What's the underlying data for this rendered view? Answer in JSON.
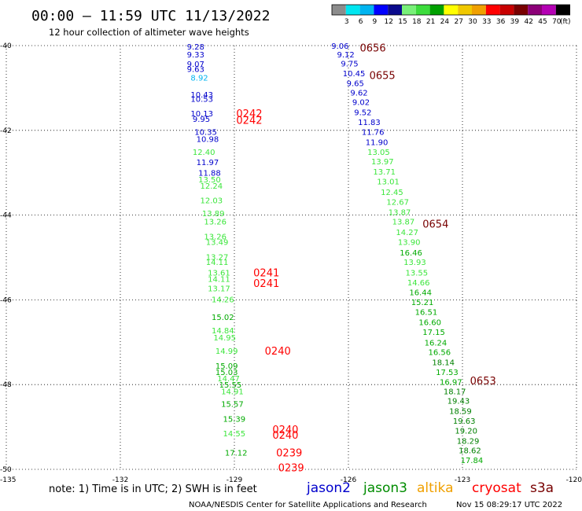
{
  "header": {
    "title": "00:00 – 11:59 UTC 11/13/2022",
    "subtitle": "12 hour collection of altimeter wave heights"
  },
  "colorbar": {
    "unit": "(ft)",
    "bins": [
      {
        "label": "",
        "color": "#8c8c8c"
      },
      {
        "label": "3",
        "color": "#00e6f0"
      },
      {
        "label": "6",
        "color": "#00b4f0"
      },
      {
        "label": "9",
        "color": "#0000ff"
      },
      {
        "label": "12",
        "color": "#0a0a8c"
      },
      {
        "label": "15",
        "color": "#78f078"
      },
      {
        "label": "18",
        "color": "#3cdc3c"
      },
      {
        "label": "21",
        "color": "#00a000"
      },
      {
        "label": "24",
        "color": "#ffff00"
      },
      {
        "label": "27",
        "color": "#f0c800"
      },
      {
        "label": "30",
        "color": "#f0a000"
      },
      {
        "label": "33",
        "color": "#ff0000"
      },
      {
        "label": "36",
        "color": "#c80000"
      },
      {
        "label": "39",
        "color": "#780000"
      },
      {
        "label": "42",
        "color": "#8c0078"
      },
      {
        "label": "45",
        "color": "#b400b4"
      },
      {
        "label": "70",
        "color": "#000000"
      }
    ]
  },
  "footer": {
    "note": "note: 1) Time is in UTC; 2) SWH is in feet",
    "credit": "NOAA/NESDIS Center for Satellite Applications and Research",
    "timestamp": "Nov 15 08:29:17 UTC 2022"
  },
  "legend": [
    {
      "name": "jason2",
      "color": "#0000cc"
    },
    {
      "name": "jason3",
      "color": "#008c00"
    },
    {
      "name": "altika",
      "color": "#f0a000"
    },
    {
      "name": "cryosat",
      "color": "#ff0000"
    },
    {
      "name": "s3a",
      "color": "#780000"
    }
  ],
  "chart_data": {
    "type": "scatter",
    "xlim": [
      -135,
      -120
    ],
    "ylim": [
      -50,
      -40
    ],
    "x_ticks": [
      -135,
      -132,
      -129,
      -126,
      -123,
      -120
    ],
    "y_ticks": [
      -40,
      -42,
      -44,
      -46,
      -48,
      -50
    ],
    "y_tick_labels": [
      "-40",
      "-42",
      "-44",
      "-46",
      "-48",
      "-50"
    ],
    "grid": true,
    "value_colors": [
      {
        "max": 9,
        "color": "#00b4f0"
      },
      {
        "max": 12,
        "color": "#0000cc"
      },
      {
        "max": 15,
        "color": "#3ce63c"
      },
      {
        "max": 18,
        "color": "#00aa00"
      },
      {
        "max": 21,
        "color": "#008000"
      }
    ],
    "track_west": {
      "lon": [
        -130.25,
        -130.25,
        -130.25,
        -130.25,
        -130.15,
        -130.15,
        -130.15,
        -130.15,
        -130.1,
        -130.05,
        -130.0,
        -130.1,
        -130.0,
        -129.95,
        -129.95,
        -129.9,
        -129.9,
        -129.85,
        -129.8,
        -129.8,
        -129.75,
        -129.75,
        -129.75,
        -129.7,
        -129.7,
        -129.7,
        -129.6,
        -129.6,
        -129.6,
        -129.55,
        -129.5,
        -129.5,
        -129.5,
        -129.45,
        -129.4,
        -129.35,
        -129.35,
        -129.3,
        -129.3,
        -129.25
      ],
      "lat": [
        -40.02,
        -40.2,
        -40.43,
        -40.55,
        -40.75,
        -41.15,
        -41.25,
        -41.6,
        -41.73,
        -42.03,
        -42.2,
        -42.5,
        -42.75,
        -43.0,
        -43.15,
        -43.3,
        -43.65,
        -43.95,
        -44.15,
        -44.5,
        -44.63,
        -44.98,
        -45.1,
        -45.35,
        -45.5,
        -45.72,
        -45.98,
        -46.4,
        -46.72,
        -46.88,
        -47.2,
        -47.55,
        -47.7,
        -47.85,
        -48.0,
        -48.15,
        -48.45,
        -48.8,
        -49.15,
        -49.6
      ],
      "values": [
        "9.28",
        "9.33",
        "9.07",
        "9.63",
        "8.92",
        "10.43",
        "10.53",
        "10.13",
        "9.95",
        "10.35",
        "10.98",
        "12.40",
        "11.97",
        "11.88",
        "13.50",
        "12.24",
        "12.03",
        "13.89",
        "13.26",
        "13.26",
        "13.49",
        "13.27",
        "14.11",
        "13.61",
        "14.11",
        "13.17",
        "14.26",
        "15.02",
        "14.84",
        "14.95",
        "14.99",
        "15.09",
        "15.03",
        "14.47",
        "15.55",
        "14.91",
        "15.57",
        "15.39",
        "14.55",
        "17.12"
      ]
    },
    "track_east": {
      "lon": [
        -126.45,
        -126.3,
        -126.2,
        -126.15,
        -126.05,
        -125.95,
        -125.9,
        -125.85,
        -125.75,
        -125.65,
        -125.55,
        -125.5,
        -125.4,
        -125.35,
        -125.25,
        -125.15,
        -125.0,
        -124.95,
        -124.85,
        -124.75,
        -124.7,
        -124.65,
        -124.55,
        -124.5,
        -124.45,
        -124.4,
        -124.35,
        -124.25,
        -124.15,
        -124.05,
        -124.0,
        -123.9,
        -123.8,
        -123.7,
        -123.6,
        -123.5,
        -123.4,
        -123.35,
        -123.25,
        -123.2,
        -123.15,
        -123.1,
        -123.05
      ],
      "lat": [
        -40.0,
        -40.2,
        -40.42,
        -40.65,
        -40.88,
        -41.1,
        -41.33,
        -41.57,
        -41.8,
        -42.03,
        -42.27,
        -42.5,
        -42.73,
        -42.97,
        -43.2,
        -43.45,
        -43.68,
        -43.92,
        -44.15,
        -44.4,
        -44.63,
        -44.88,
        -45.1,
        -45.35,
        -45.58,
        -45.82,
        -46.05,
        -46.28,
        -46.52,
        -46.75,
        -47.0,
        -47.23,
        -47.47,
        -47.7,
        -47.93,
        -48.15,
        -48.38,
        -48.62,
        -48.85,
        -49.08,
        -49.32,
        -49.55,
        -49.78
      ],
      "values": [
        "9.06",
        "9.12",
        "9.75",
        "10.45",
        "9.65",
        "9.62",
        "9.02",
        "9.52",
        "11.83",
        "11.76",
        "11.90",
        "13.05",
        "13.97",
        "13.71",
        "13.01",
        "12.45",
        "12.67",
        "13.87",
        "13.87",
        "14.27",
        "13.90",
        "16.46",
        "13.93",
        "13.55",
        "14.66",
        "16.44",
        "15.21",
        "16.51",
        "16.60",
        "17.15",
        "16.24",
        "16.56",
        "18.14",
        "17.53",
        "16.97",
        "18.17",
        "19.43",
        "18.59",
        "19.63",
        "19.20",
        "18.29",
        "18.62",
        "17.84"
      ]
    },
    "time_labels": [
      {
        "text": "0656",
        "lon": -125.7,
        "lat": -40.05,
        "color": "#780000"
      },
      {
        "text": "0655",
        "lon": -125.45,
        "lat": -40.7,
        "color": "#780000"
      },
      {
        "text": "0242",
        "lon": -128.95,
        "lat": -41.6,
        "color": "#ff0000"
      },
      {
        "text": "0242",
        "lon": -128.95,
        "lat": -41.75,
        "color": "#ff0000"
      },
      {
        "text": "0654",
        "lon": -124.05,
        "lat": -44.2,
        "color": "#780000"
      },
      {
        "text": "0241",
        "lon": -128.5,
        "lat": -45.35,
        "color": "#ff0000"
      },
      {
        "text": "0241",
        "lon": -128.5,
        "lat": -45.6,
        "color": "#ff0000"
      },
      {
        "text": "0240",
        "lon": -128.2,
        "lat": -47.2,
        "color": "#ff0000"
      },
      {
        "text": "0653",
        "lon": -122.8,
        "lat": -47.9,
        "color": "#780000"
      },
      {
        "text": "0240",
        "lon": -128.0,
        "lat": -49.05,
        "color": "#ff0000"
      },
      {
        "text": "0240",
        "lon": -128.0,
        "lat": -49.18,
        "color": "#ff0000"
      },
      {
        "text": "0239",
        "lon": -127.9,
        "lat": -49.6,
        "color": "#ff0000"
      },
      {
        "text": "0239",
        "lon": -127.85,
        "lat": -49.95,
        "color": "#ff0000"
      }
    ]
  }
}
